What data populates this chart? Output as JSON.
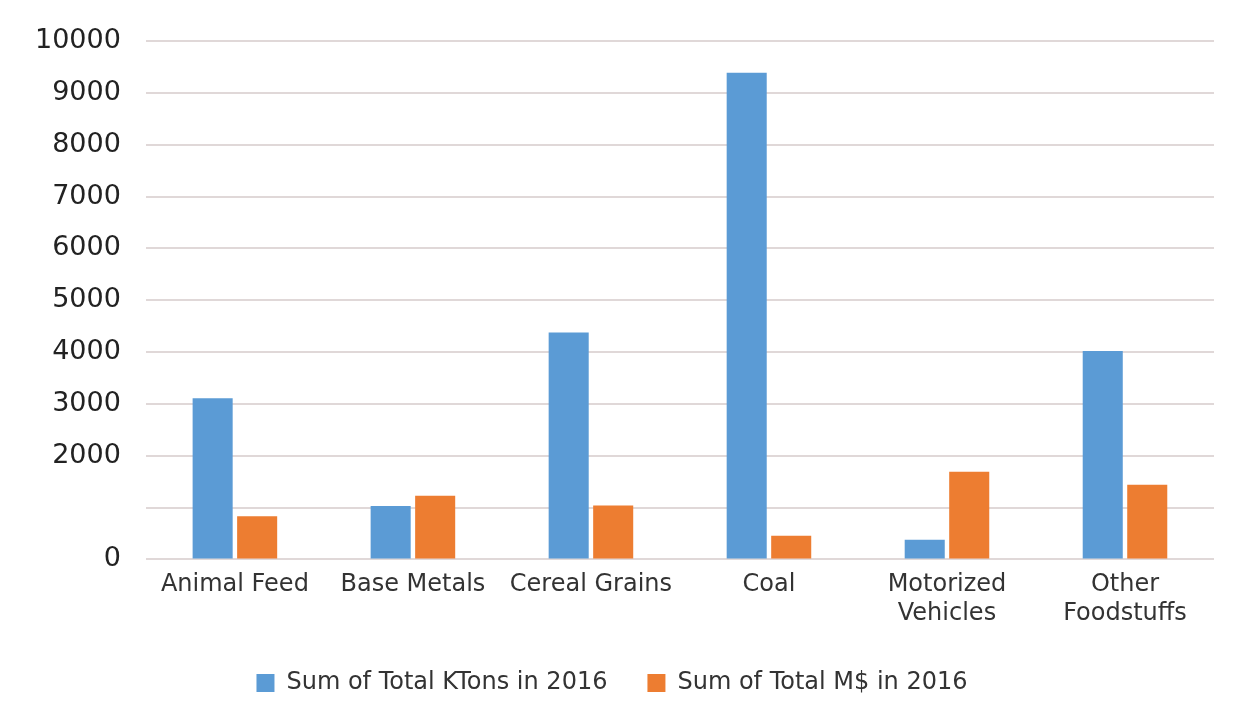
{
  "chart_data": {
    "type": "bar",
    "categories": [
      "Animal Feed",
      "Base Metals",
      "Cereal Grains",
      "Coal",
      "Motorized Vehicles",
      "Other Foodstuffs"
    ],
    "series": [
      {
        "name": "Sum of Total KTons in 2016",
        "color": "#5b9bd5",
        "values": [
          3110,
          1030,
          4380,
          9390,
          380,
          4020
        ]
      },
      {
        "name": "Sum of Total M$ in 2016",
        "color": "#ed7d31",
        "values": [
          835,
          1230,
          1040,
          455,
          1690,
          1440
        ]
      }
    ],
    "ylim": [
      0,
      10000
    ],
    "yticks": [
      0,
      {
        "value": 1000,
        "label": null
      },
      2000,
      3000,
      4000,
      5000,
      6000,
      7000,
      8000,
      9000,
      10000
    ],
    "grid": "y",
    "legend": "bottom"
  }
}
